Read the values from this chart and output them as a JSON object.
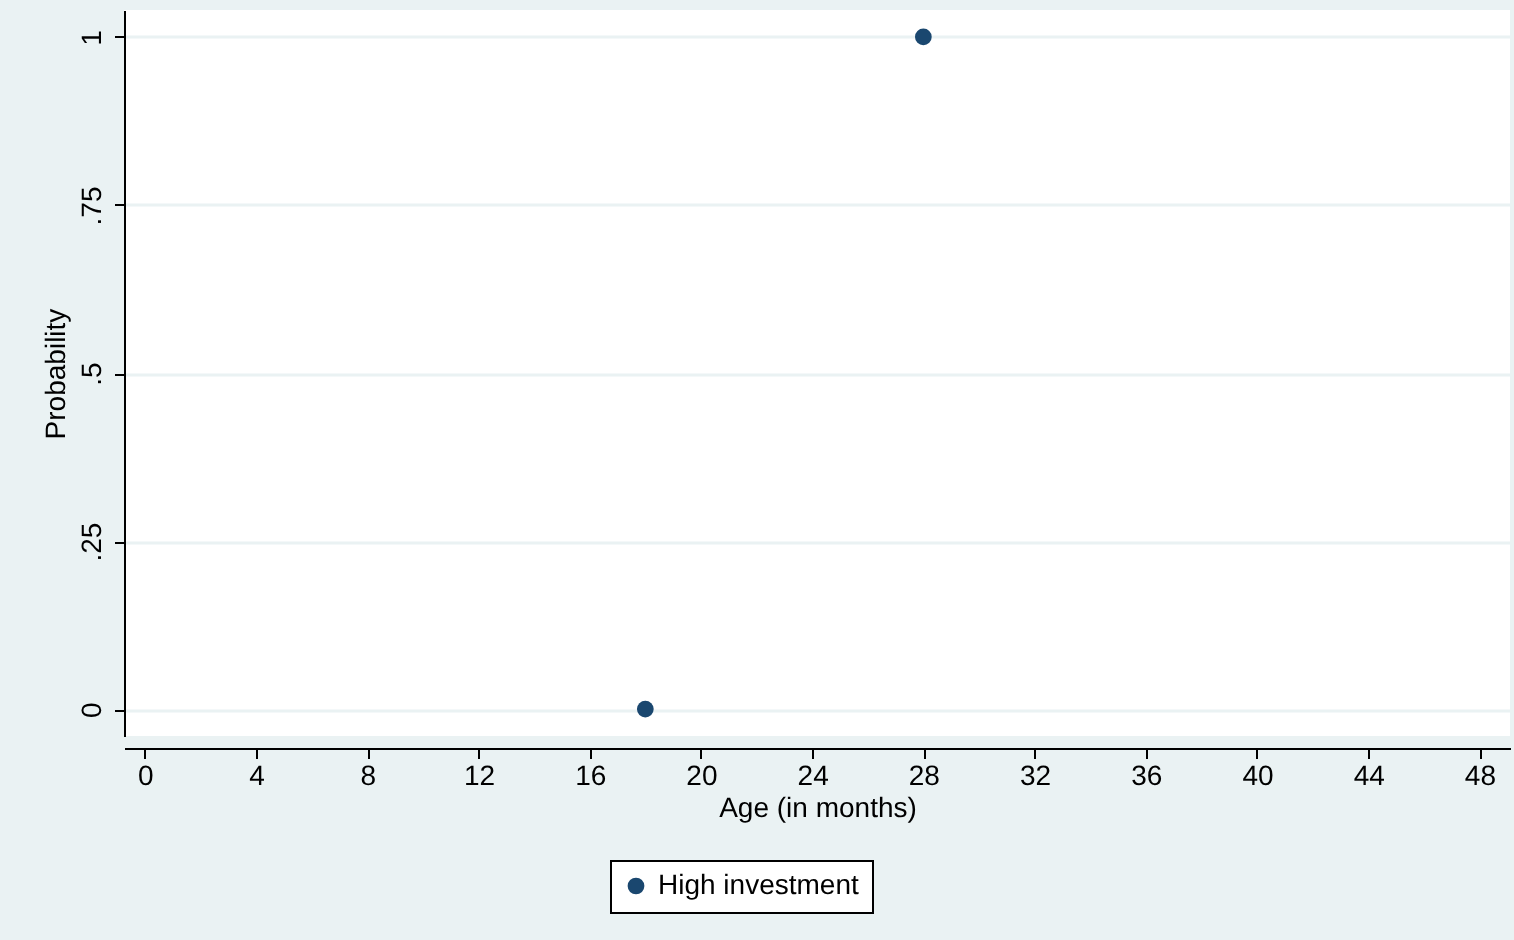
{
  "chart_data": {
    "type": "scatter",
    "xlabel": "Age (in months)",
    "ylabel": "Probability",
    "x": [
      18,
      28
    ],
    "series": [
      {
        "name": "High investment",
        "color": "#1a476f",
        "values": [
          0,
          1
        ]
      }
    ],
    "xlim": [
      -0.75,
      49.1
    ],
    "xticks": [
      0,
      4,
      8,
      12,
      16,
      20,
      24,
      28,
      32,
      36,
      40,
      44,
      48
    ],
    "ylim": [
      -0.04,
      1.04
    ],
    "yticks": [
      {
        "value": 0,
        "label": "0"
      },
      {
        "value": 0.25,
        "label": ".25"
      },
      {
        "value": 0.5,
        "label": ".5"
      },
      {
        "value": 0.75,
        "label": ".75"
      },
      {
        "value": 1,
        "label": "1"
      }
    ],
    "grid": "y",
    "legend": "bottom",
    "marker": "circle"
  }
}
